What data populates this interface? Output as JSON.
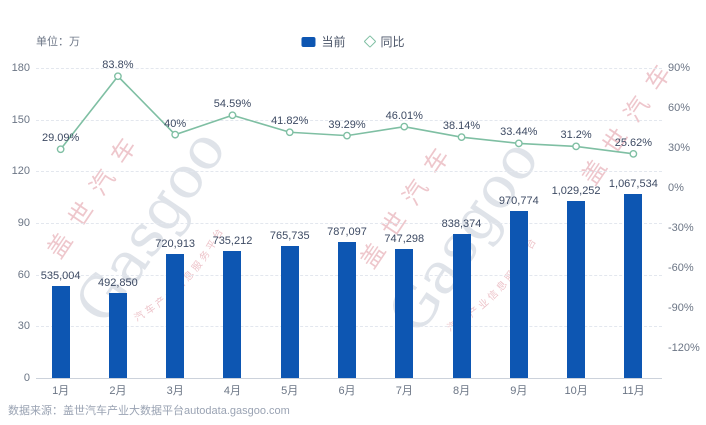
{
  "header": {
    "unit_label": "单位：万",
    "legend": [
      {
        "label": "当前",
        "marker": "square",
        "color": "#0d56b2"
      },
      {
        "label": "同比",
        "marker": "diamond",
        "color": "#7fbfa3"
      }
    ]
  },
  "chart_data": {
    "type": "bar+line",
    "categories": [
      "1月",
      "2月",
      "3月",
      "4月",
      "5月",
      "6月",
      "7月",
      "8月",
      "9月",
      "10月",
      "11月"
    ],
    "series": [
      {
        "name": "当前",
        "type": "bar",
        "axis": "left",
        "color": "#0d56b2",
        "values": [
          535004,
          492850,
          720913,
          735212,
          765735,
          787097,
          747298,
          838374,
          970774,
          1029252,
          1067534
        ],
        "labels": [
          "535,004",
          "492,850",
          "720,913",
          "735,212",
          "765,735",
          "787,097",
          "747,298",
          "838,374",
          "970,774",
          "1,029,252",
          "1,067,534"
        ]
      },
      {
        "name": "同比",
        "type": "line",
        "axis": "right",
        "color": "#7fbfa3",
        "values": [
          29.09,
          83.8,
          40,
          54.59,
          41.82,
          39.29,
          46.01,
          38.14,
          33.44,
          31.2,
          25.62
        ],
        "labels": [
          "29.09%",
          "83.8%",
          "40%",
          "54.59%",
          "41.82%",
          "39.29%",
          "46.01%",
          "38.14%",
          "33.44%",
          "31.2%",
          "25.62%"
        ]
      }
    ],
    "left_axis": {
      "min": 0,
      "max": 180,
      "ticks": [
        0,
        30,
        60,
        90,
        120,
        150,
        180
      ],
      "unit": "万",
      "value_divisor": 10000
    },
    "right_axis": {
      "max": 90,
      "step": 30,
      "ticks": [
        {
          "v": 90,
          "label": "90%"
        },
        {
          "v": 60,
          "label": "60%"
        },
        {
          "v": 30,
          "label": "30%"
        },
        {
          "v": 0,
          "label": "0%"
        },
        {
          "v": -30,
          "label": "-30%"
        },
        {
          "v": -60,
          "label": "-60%"
        },
        {
          "v": -90,
          "label": "-90%"
        },
        {
          "v": -120,
          "label": "-120%"
        }
      ]
    },
    "grid": "dashed-horizontal",
    "legend_position": "top-center"
  },
  "watermark": {
    "brand": "Gasgoo",
    "name_cn": "盖世汽车",
    "tagline_cn": "汽车产业信息服务平台"
  },
  "footer": {
    "source": "数据来源：盖世汽车产业大数据平台autodata.gasgoo.com"
  }
}
